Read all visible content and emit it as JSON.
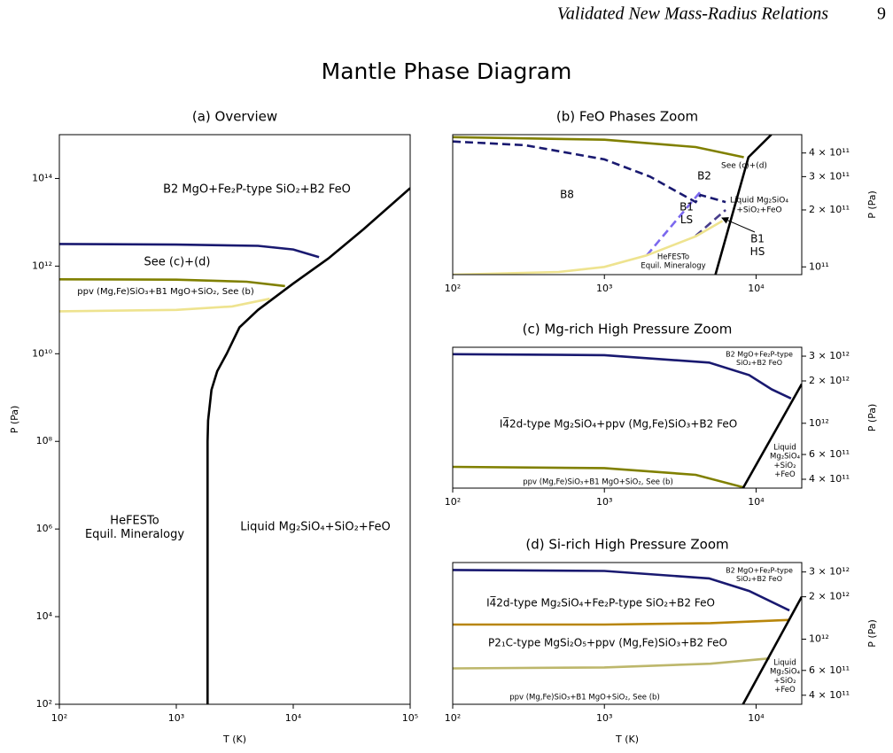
{
  "header": {
    "running_title": "Validated New Mass-Radius Relations",
    "page_number": "9"
  },
  "suptitle": "Mantle Phase Diagram",
  "chart_data": [
    {
      "type": "line",
      "title": "(a) Overview",
      "xlabel": "T (K)",
      "ylabel": "P (Pa)",
      "y_axis_side": "left",
      "log_x": true,
      "log_y": true,
      "xlim": [
        100,
        100000
      ],
      "ylim": [
        100,
        1000000000000000.0
      ],
      "xticks": [
        {
          "value": 100,
          "label": "10²"
        },
        {
          "value": 1000,
          "label": "10³"
        },
        {
          "value": 10000,
          "label": "10⁴"
        },
        {
          "value": 100000,
          "label": "10⁵"
        }
      ],
      "yticks": [
        {
          "value": 100,
          "label": "10²"
        },
        {
          "value": 10000,
          "label": "10⁴"
        },
        {
          "value": 1000000,
          "label": "10⁶"
        },
        {
          "value": 100000000,
          "label": "10⁸"
        },
        {
          "value": 10000000000,
          "label": "10¹⁰"
        },
        {
          "value": 1000000000000,
          "label": "10¹²"
        },
        {
          "value": 100000000000000,
          "label": "10¹⁴"
        }
      ],
      "series": [
        {
          "color": "#000000",
          "dashed": false,
          "x": [
            1850,
            1850,
            1870,
            2000,
            2240,
            2700,
            3470,
            5000,
            10000,
            20000,
            40000,
            100000
          ],
          "values": [
            100,
            100000000.0,
            300000000.0,
            1500000000.0,
            4000000000.0,
            10000000000.0,
            40000000000.0,
            100000000000.0,
            400000000000.0,
            1500000000000.0,
            7000000000000.0,
            60000000000000.0
          ]
        },
        {
          "color": "#191970",
          "dashed": false,
          "x": [
            100,
            1000,
            5000,
            10000,
            16600
          ],
          "values": [
            3200000000000.0,
            3100000000000.0,
            2900000000000.0,
            2400000000000.0,
            1600000000000.0
          ]
        },
        {
          "color": "#808000",
          "dashed": false,
          "x": [
            100,
            1000,
            4000,
            8500
          ],
          "values": [
            500000000000.0,
            490000000000.0,
            440000000000.0,
            350000000000.0
          ]
        },
        {
          "color": "#eee38f",
          "dashed": false,
          "x": [
            100,
            1000,
            3000,
            6300
          ],
          "values": [
            93000000000.0,
            100000000000.0,
            120000000000.0,
            180000000000.0
          ]
        }
      ],
      "annotations": [
        {
          "lines": [
            "B2 MgO+Fe₂P-type SiO₂+B2 FeO"
          ]
        },
        {
          "lines": [
            "See (c)+(d)"
          ]
        },
        {
          "lines": [
            "ppv (Mg,Fe)SiO₃+B1 MgO+SiO₂, See (b)"
          ]
        },
        {
          "lines": [
            "HeFESTo",
            "Equil. Mineralogy"
          ]
        },
        {
          "lines": [
            "Liquid Mg₂SiO₄+SiO₂+FeO"
          ]
        }
      ]
    },
    {
      "type": "line",
      "title": "(b) FeO Phases Zoom",
      "ylabel": "P (Pa)",
      "y_axis_side": "right",
      "log_x": true,
      "log_y": true,
      "xlim": [
        100,
        20000
      ],
      "ylim": [
        91000000000.0,
        500000000000.0
      ],
      "xticks": [
        {
          "value": 100,
          "label": "10²"
        },
        {
          "value": 1000,
          "label": "10³"
        },
        {
          "value": 10000,
          "label": "10⁴"
        }
      ],
      "yticks": [
        {
          "value": 400000000000,
          "label": "4 × 10¹¹"
        },
        {
          "value": 300000000000,
          "label": "3 × 10¹¹"
        },
        {
          "value": 200000000000,
          "label": "2 × 10¹¹"
        },
        {
          "value": 100000000000,
          "label": "10¹¹"
        }
      ],
      "series": [
        {
          "color": "#808000",
          "dashed": false,
          "x": [
            100,
            1000,
            4000,
            8300
          ],
          "values": [
            485000000000.0,
            470000000000.0,
            430000000000.0,
            380000000000.0
          ]
        },
        {
          "color": "#191970",
          "dashed": true,
          "x": [
            100,
            300,
            1000,
            2000,
            3000,
            4000,
            4300,
            6300
          ],
          "values": [
            460000000000.0,
            440000000000.0,
            370000000000.0,
            300000000000.0,
            250000000000.0,
            220000000000.0,
            240000000000.0,
            220000000000.0
          ]
        },
        {
          "color": "#7b68ee",
          "dashed": true,
          "x": [
            1900,
            4300
          ],
          "values": [
            115000000000.0,
            250000000000.0
          ]
        },
        {
          "color": "#483d8b",
          "dashed": true,
          "x": [
            4000,
            6300
          ],
          "values": [
            146000000000.0,
            200000000000.0
          ]
        },
        {
          "color": "#eee38f",
          "dashed": false,
          "x": [
            100,
            500,
            1000,
            1900,
            4000,
            6000
          ],
          "values": [
            91000000000.0,
            94000000000.0,
            100000000000.0,
            115000000000.0,
            145000000000.0,
            175000000000.0
          ]
        },
        {
          "color": "#000000",
          "dashed": false,
          "x": [
            5400,
            8900,
            12600
          ],
          "values": [
            91000000000.0,
            380000000000.0,
            500000000000.0
          ]
        }
      ],
      "annotations": [
        {
          "lines": [
            "See (c)+(d)"
          ]
        },
        {
          "lines": [
            "B2"
          ]
        },
        {
          "lines": [
            "B8"
          ]
        },
        {
          "lines": [
            "B1",
            "LS"
          ]
        },
        {
          "lines": [
            "Liquid Mg₂SiO₄",
            "+SiO₂+FeO"
          ]
        },
        {
          "lines": [
            "B1",
            "HS"
          ]
        },
        {
          "lines": [
            "HeFESTo",
            "Equil. Mineralogy"
          ]
        }
      ]
    },
    {
      "type": "line",
      "title": "(c) Mg-rich High Pressure Zoom",
      "ylabel": "P (Pa)",
      "y_axis_side": "right",
      "log_x": true,
      "log_y": true,
      "xlim": [
        100,
        20000
      ],
      "ylim": [
        346000000000.0,
        3470000000000.0
      ],
      "xticks": [
        {
          "value": 100,
          "label": "10²"
        },
        {
          "value": 1000,
          "label": "10³"
        },
        {
          "value": 10000,
          "label": "10⁴"
        }
      ],
      "yticks": [
        {
          "value": 3000000000000,
          "label": "3 × 10¹²"
        },
        {
          "value": 2000000000000,
          "label": "2 × 10¹²"
        },
        {
          "value": 1000000000000,
          "label": "10¹²"
        },
        {
          "value": 600000000000,
          "label": "6 × 10¹¹"
        },
        {
          "value": 400000000000,
          "label": "4 × 10¹¹"
        }
      ],
      "series": [
        {
          "color": "#191970",
          "dashed": false,
          "x": [
            100,
            1000,
            4900,
            9000,
            12700,
            17000
          ],
          "values": [
            3100000000000.0,
            3050000000000.0,
            2700000000000.0,
            2200000000000.0,
            1740000000000.0,
            1500000000000.0
          ]
        },
        {
          "color": "#808000",
          "dashed": false,
          "x": [
            100,
            1000,
            4000,
            8300
          ],
          "values": [
            490000000000.0,
            480000000000.0,
            430000000000.0,
            350000000000.0
          ]
        },
        {
          "color": "#000000",
          "dashed": false,
          "x": [
            8200,
            20000
          ],
          "values": [
            346000000000.0,
            1900000000000.0
          ]
        }
      ],
      "annotations": [
        {
          "lines": [
            "B2 MgO+Fe₂P-type",
            "SiO₂+B2 FeO"
          ]
        },
        {
          "lines": [
            "I4̅2d-type Mg₂SiO₄+ppv (Mg,Fe)SiO₃+B2 FeO"
          ]
        },
        {
          "lines": [
            "Liquid",
            "Mg₂SiO₄",
            "+SiO₂",
            "+FeO"
          ]
        },
        {
          "lines": [
            "ppv (Mg,Fe)SiO₃+B1 MgO+SiO₂, See (b)"
          ]
        }
      ]
    },
    {
      "type": "line",
      "title": "(d) Si-rich High Pressure Zoom",
      "xlabel": "T (K)",
      "ylabel": "P (Pa)",
      "y_axis_side": "right",
      "log_x": true,
      "log_y": true,
      "xlim": [
        100,
        20000
      ],
      "ylim": [
        345000000000.0,
        3500000000000.0
      ],
      "xticks": [
        {
          "value": 100,
          "label": "10²"
        },
        {
          "value": 1000,
          "label": "10³"
        },
        {
          "value": 10000,
          "label": "10⁴"
        }
      ],
      "yticks": [
        {
          "value": 3000000000000,
          "label": "3 × 10¹²"
        },
        {
          "value": 2000000000000,
          "label": "2 × 10¹²"
        },
        {
          "value": 1000000000000,
          "label": "10¹²"
        },
        {
          "value": 600000000000,
          "label": "6 × 10¹¹"
        },
        {
          "value": 400000000000,
          "label": "4 × 10¹¹"
        }
      ],
      "series": [
        {
          "color": "#191970",
          "dashed": false,
          "x": [
            100,
            1000,
            4900,
            9000,
            16600
          ],
          "values": [
            3100000000000.0,
            3050000000000.0,
            2700000000000.0,
            2200000000000.0,
            1600000000000.0
          ]
        },
        {
          "color": "#b8860b",
          "dashed": false,
          "x": [
            100,
            1000,
            5000,
            16600
          ],
          "values": [
            1270000000000.0,
            1270000000000.0,
            1300000000000.0,
            1370000000000.0
          ]
        },
        {
          "color": "#bdb76b",
          "dashed": false,
          "x": [
            100,
            1000,
            5000,
            12300
          ],
          "values": [
            620000000000.0,
            630000000000.0,
            670000000000.0,
            730000000000.0
          ]
        },
        {
          "color": "#000000",
          "dashed": false,
          "x": [
            8200,
            20000
          ],
          "values": [
            345000000000.0,
            2000000000000.0
          ]
        }
      ],
      "annotations": [
        {
          "lines": [
            "B2 MgO+Fe₂P-type",
            "SiO₂+B2 FeO"
          ]
        },
        {
          "lines": [
            "I4̅2d-type Mg₂SiO₄+Fe₂P-type SiO₂+B2 FeO"
          ]
        },
        {
          "lines": [
            "P2₁C-type MgSi₂O₅+ppv (Mg,Fe)SiO₃+B2 FeO"
          ]
        },
        {
          "lines": [
            "Liquid",
            "Mg₂SiO₄",
            "+SiO₂",
            "+FeO"
          ]
        },
        {
          "lines": [
            "ppv (Mg,Fe)SiO₃+B1 MgO+SiO₂, See (b)"
          ]
        }
      ]
    }
  ]
}
